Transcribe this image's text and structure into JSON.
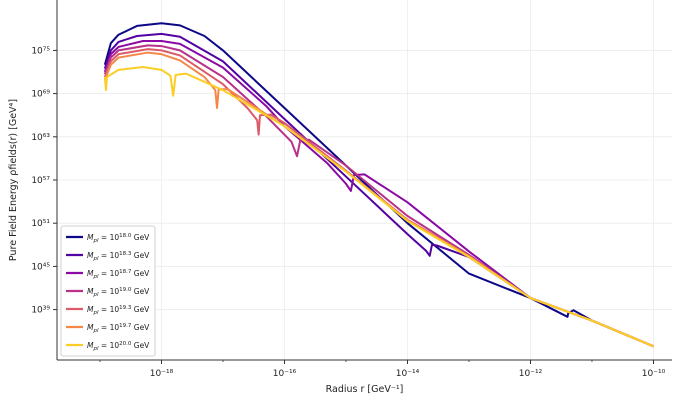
{
  "chart_data": {
    "type": "line",
    "title": "",
    "xlabel": "Radius r [GeV⁻¹]",
    "ylabel": "Pure Field Energy ρfields(r) [GeV⁴]",
    "x_scale": "log",
    "y_scale": "log",
    "xlim": [
      2e-20,
      2e-10
    ],
    "ylim": [
      1e+32,
      1e+82
    ],
    "grid": true,
    "legend_position": "lower-left",
    "x_ticks": [
      {
        "value": 1e-18,
        "label": "10⁻¹⁸"
      },
      {
        "value": 1e-16,
        "label": "10⁻¹⁶"
      },
      {
        "value": 1e-14,
        "label": "10⁻¹⁴"
      },
      {
        "value": 1e-12,
        "label": "10⁻¹²"
      },
      {
        "value": 1e-10,
        "label": "10⁻¹⁰"
      }
    ],
    "y_ticks": [
      {
        "value": 1e+39,
        "label": "10³⁹"
      },
      {
        "value": 1e+45,
        "label": "10⁴⁵"
      },
      {
        "value": 1e+51,
        "label": "10⁵¹"
      },
      {
        "value": 1e+57,
        "label": "10⁵⁷"
      },
      {
        "value": 1e+63,
        "label": "10⁶³"
      },
      {
        "value": 1e+69,
        "label": "10⁶⁹"
      },
      {
        "value": 1e+75,
        "label": "10⁷⁵"
      }
    ],
    "series": [
      {
        "name": "Mpl = 10^18.0 GeV",
        "label_base": "M",
        "label_sub": "pl",
        "label_mid": " = 10",
        "label_exp": "18.0",
        "label_unit": " GeV",
        "color": "#0d0887",
        "points": [
          [
            1.2e-19,
            1e+73
          ],
          [
            1.5e-19,
            1e+76
          ],
          [
            2e-19,
            1.5e+77
          ],
          [
            4e-19,
            2.5e+78
          ],
          [
            1e-18,
            6e+78
          ],
          [
            2e-18,
            3e+78
          ],
          [
            5e-18,
            1e+77
          ],
          [
            1e-17,
            1e+75
          ],
          [
            1e-16,
            1e+67
          ],
          [
            1e-15,
            1e+59
          ],
          [
            1e-14,
            1e+51
          ],
          [
            1e-13,
            1e+44
          ],
          [
            1e-12,
            4e+40
          ],
          [
            4e-12,
            1e+38
          ],
          [
            4.1e-12,
            3e+38
          ],
          [
            5e-12,
            8e+38
          ],
          [
            1e-11,
            3e+37
          ],
          [
            1e-10,
            8e+33
          ]
        ]
      },
      {
        "name": "Mpl = 10^18.3 GeV",
        "label_base": "M",
        "label_sub": "pl",
        "label_mid": " = 10",
        "label_exp": "18.3",
        "label_unit": " GeV",
        "color": "#5302a3",
        "points": [
          [
            1.2e-19,
            3e+72
          ],
          [
            1.5e-19,
            1e+75
          ],
          [
            2e-19,
            1.5e+76
          ],
          [
            4e-19,
            1e+77
          ],
          [
            1e-18,
            2e+77
          ],
          [
            2e-18,
            8e+76
          ],
          [
            1e-17,
            3e+73
          ],
          [
            1e-16,
            3e+65
          ],
          [
            1e-15,
            3e+57
          ],
          [
            1e-14,
            3e+49
          ],
          [
            2e-14,
            1.5e+47
          ],
          [
            2.3e-14,
            3e+46
          ],
          [
            2.5e-14,
            1e+48
          ],
          [
            3e-14,
            8e+47
          ],
          [
            1e-13,
            2e+46
          ],
          [
            1e-12,
            4e+40
          ],
          [
            1e-11,
            3e+37
          ],
          [
            1e-10,
            8e+33
          ]
        ]
      },
      {
        "name": "Mpl = 10^18.7 GeV",
        "label_base": "M",
        "label_sub": "pl",
        "label_mid": " = 10",
        "label_exp": "18.7",
        "label_unit": " GeV",
        "color": "#8b0aa5",
        "points": [
          [
            1.2e-19,
            1e+72
          ],
          [
            1.5e-19,
            3e+74
          ],
          [
            2e-19,
            3e+75
          ],
          [
            5e-19,
            2e+76
          ],
          [
            1e-18,
            2e+76
          ],
          [
            2e-18,
            8e+75
          ],
          [
            1e-17,
            4e+72
          ],
          [
            5e-17,
            2e+67
          ],
          [
            1e-16,
            3e+64
          ],
          [
            5e-16,
            2e+59
          ],
          [
            1e-15,
            3e+56
          ],
          [
            1.2e-15,
            3e+55
          ],
          [
            1.35e-15,
            5e+57
          ],
          [
            2e-15,
            6e+57
          ],
          [
            1e-14,
            8e+53
          ],
          [
            1e-13,
            1.2e+47
          ],
          [
            1e-12,
            4e+40
          ],
          [
            1e-11,
            3e+37
          ],
          [
            1e-10,
            8e+33
          ]
        ]
      },
      {
        "name": "Mpl = 10^19.0 GeV",
        "label_base": "M",
        "label_sub": "pl",
        "label_mid": " = 10",
        "label_exp": "19.0",
        "label_unit": " GeV",
        "color": "#b83289",
        "points": [
          [
            1.2e-19,
            5e+71
          ],
          [
            1.5e-19,
            1e+74
          ],
          [
            2e-19,
            1e+75
          ],
          [
            6e-19,
            5e+75
          ],
          [
            1e-18,
            4e+75
          ],
          [
            2e-18,
            1e+75
          ],
          [
            1e-17,
            2e+71
          ],
          [
            5e-17,
            8e+65
          ],
          [
            1.3e-16,
            2e+62
          ],
          [
            1.6e-16,
            2e+60
          ],
          [
            1.8e-16,
            3e+62
          ],
          [
            2.5e-16,
            4e+62
          ],
          [
            1e-15,
            1e+59
          ],
          [
            1e-14,
            1e+52
          ],
          [
            1e-13,
            4e+46
          ],
          [
            1e-12,
            4e+40
          ],
          [
            1e-11,
            3e+37
          ],
          [
            1e-10,
            8e+33
          ]
        ]
      },
      {
        "name": "Mpl = 10^19.3 GeV",
        "label_base": "M",
        "label_sub": "pl",
        "label_mid": " = 10",
        "label_exp": "19.3",
        "label_unit": " GeV",
        "color": "#db5c68",
        "points": [
          [
            1.2e-19,
            2e+71
          ],
          [
            1.5e-19,
            3e+73
          ],
          [
            2e-19,
            3e+74
          ],
          [
            6e-19,
            1.5e+75
          ],
          [
            1e-18,
            1e+75
          ],
          [
            2e-18,
            2e+74
          ],
          [
            1e-17,
            2e+70
          ],
          [
            2.5e-17,
            1e+67
          ],
          [
            3.6e-17,
            2e+65
          ],
          [
            3.8e-17,
            2e+63
          ],
          [
            4e-17,
            1e+66
          ],
          [
            6e-17,
            1.2e+66
          ],
          [
            1e-16,
            8e+64
          ],
          [
            1e-15,
            2e+58
          ],
          [
            1e-14,
            3e+51
          ],
          [
            1e-13,
            3e+46
          ],
          [
            1e-12,
            4e+40
          ],
          [
            1e-11,
            3e+37
          ],
          [
            1e-10,
            8e+33
          ]
        ]
      },
      {
        "name": "Mpl = 10^19.7 GeV",
        "label_base": "M",
        "label_sub": "pl",
        "label_mid": " = 10",
        "label_exp": "19.7",
        "label_unit": " GeV",
        "color": "#f48849",
        "points": [
          [
            1.2e-19,
            7e+70
          ],
          [
            1.5e-19,
            1e+73
          ],
          [
            2e-19,
            1e+74
          ],
          [
            6e-19,
            5e+74
          ],
          [
            1e-18,
            3e+74
          ],
          [
            2e-18,
            4e+73
          ],
          [
            5e-18,
            2e+71
          ],
          [
            7.5e-18,
            3e+69
          ],
          [
            8e-18,
            1e+67
          ],
          [
            8.5e-18,
            4e+69
          ],
          [
            1.2e-17,
            4e+69
          ],
          [
            1e-16,
            3e+64
          ],
          [
            1e-15,
            1.5e+58
          ],
          [
            1e-14,
            2.5e+51
          ],
          [
            1e-13,
            2.5e+46
          ],
          [
            1e-12,
            4e+40
          ],
          [
            1e-11,
            3e+37
          ],
          [
            1e-10,
            8e+33
          ]
        ]
      },
      {
        "name": "Mpl = 10^20.0 GeV",
        "label_base": "M",
        "label_sub": "pl",
        "label_mid": " = 10",
        "label_exp": "20.0",
        "label_unit": " GeV",
        "color": "#fcce25",
        "points": [
          [
            1.2e-19,
            2e+71
          ],
          [
            1.25e-19,
            3e+69
          ],
          [
            1.3e-19,
            2e+71
          ],
          [
            2e-19,
            2e+72
          ],
          [
            5e-19,
            5e+72
          ],
          [
            1e-18,
            2e+72
          ],
          [
            1.4e-18,
            3e+71
          ],
          [
            1.55e-18,
            5e+68
          ],
          [
            1.7e-18,
            4e+71
          ],
          [
            2.5e-18,
            6e+71
          ],
          [
            1e-17,
            3e+69
          ],
          [
            1e-16,
            3e+64
          ],
          [
            1e-15,
            1.5e+58
          ],
          [
            1e-14,
            2e+51
          ],
          [
            1e-13,
            2e+46
          ],
          [
            1e-12,
            4e+40
          ],
          [
            1e-11,
            3e+37
          ],
          [
            1e-10,
            8e+33
          ]
        ]
      }
    ]
  }
}
